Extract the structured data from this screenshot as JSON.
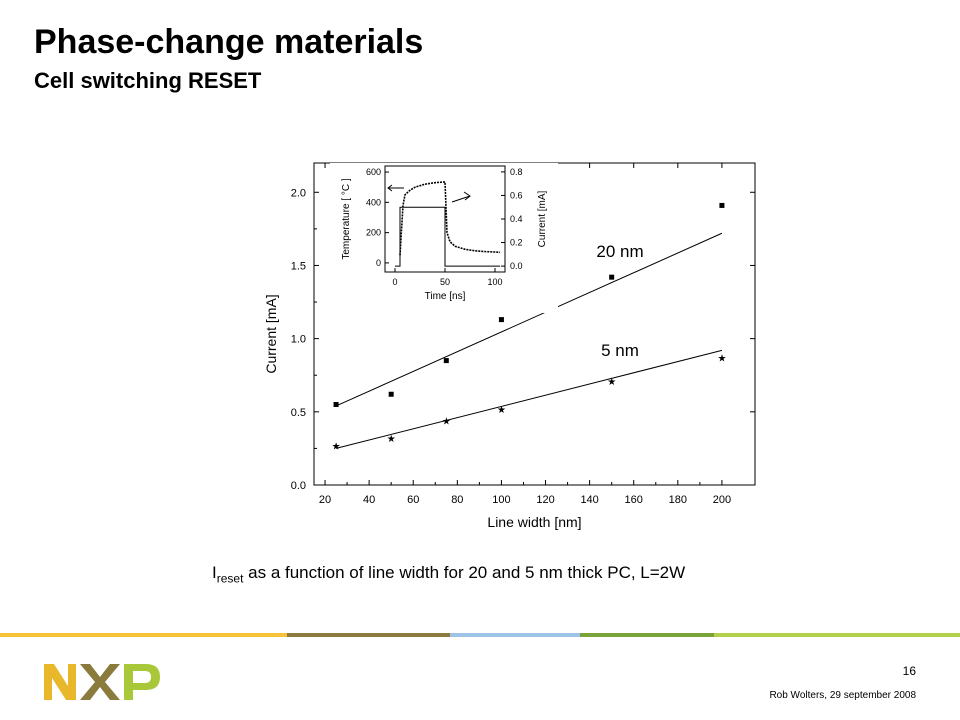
{
  "slide": {
    "title": "Phase-change materials",
    "subtitle": "Cell switching RESET",
    "caption_prefix": "I",
    "caption_sub": "reset",
    "caption_rest": " as a function of line width for 20 and 5 nm thick PC, L=2W",
    "page_number": "16",
    "footer": "Rob Wolters, 29 september 2008",
    "stripe_colors": [
      "#f4c33a",
      "#8a7a3c",
      "#9ec3e6",
      "#7aa33a",
      "#b4cf4a"
    ],
    "logo_colors": {
      "n": "#e8b72a",
      "x": "#8a7a3c",
      "p": "#a8c83a"
    }
  },
  "chart_data": [
    {
      "type": "scatter",
      "xlabel": "Line width [nm]",
      "ylabel": "Current [mA]",
      "xlim": [
        15,
        215
      ],
      "ylim": [
        0,
        2.2
      ],
      "xticks": [
        "20",
        "40",
        "60",
        "80",
        "100",
        "120",
        "140",
        "160",
        "180",
        "200"
      ],
      "yticks": [
        "0.0",
        "0.5",
        "1.0",
        "1.5",
        "2.0"
      ],
      "series": [
        {
          "name": "20 nm",
          "marker": "square",
          "x": [
            25,
            50,
            75,
            100,
            150,
            200
          ],
          "y": [
            0.55,
            0.62,
            0.85,
            1.13,
            1.42,
            1.91
          ],
          "fit": [
            [
              25,
              0.54
            ],
            [
              200,
              1.72
            ]
          ]
        },
        {
          "name": "5 nm",
          "marker": "star",
          "x": [
            25,
            50,
            75,
            100,
            150,
            200
          ],
          "y": [
            0.27,
            0.32,
            0.44,
            0.52,
            0.71,
            0.87
          ],
          "fit": [
            [
              25,
              0.25
            ],
            [
              200,
              0.92
            ]
          ]
        }
      ]
    },
    {
      "type": "line",
      "xlabel": "Time [ns]",
      "ylabel_left": "Temperature [ °C ]",
      "ylabel_right": "Current [mA]",
      "xticks": [
        "0",
        "50",
        "100"
      ],
      "yticks_left": [
        "0",
        "200",
        "400",
        "600"
      ],
      "yticks_right": [
        "0.0",
        "0.2",
        "0.4",
        "0.6",
        "0.8"
      ],
      "xlim": [
        -10,
        110
      ],
      "ylim_left": [
        -60,
        640
      ],
      "ylim_right": [
        -0.05,
        0.85
      ],
      "temperature": {
        "x": [
          5,
          8,
          10,
          15,
          20,
          30,
          40,
          50,
          52,
          55,
          60,
          70,
          80,
          90,
          100,
          105
        ],
        "y": [
          50,
          380,
          450,
          480,
          500,
          520,
          530,
          535,
          200,
          140,
          110,
          90,
          80,
          75,
          72,
          70
        ]
      },
      "current": {
        "x": [
          0,
          5,
          5,
          50,
          50,
          105
        ],
        "y": [
          0.0,
          0.0,
          0.5,
          0.5,
          0.0,
          0.0
        ]
      }
    }
  ]
}
